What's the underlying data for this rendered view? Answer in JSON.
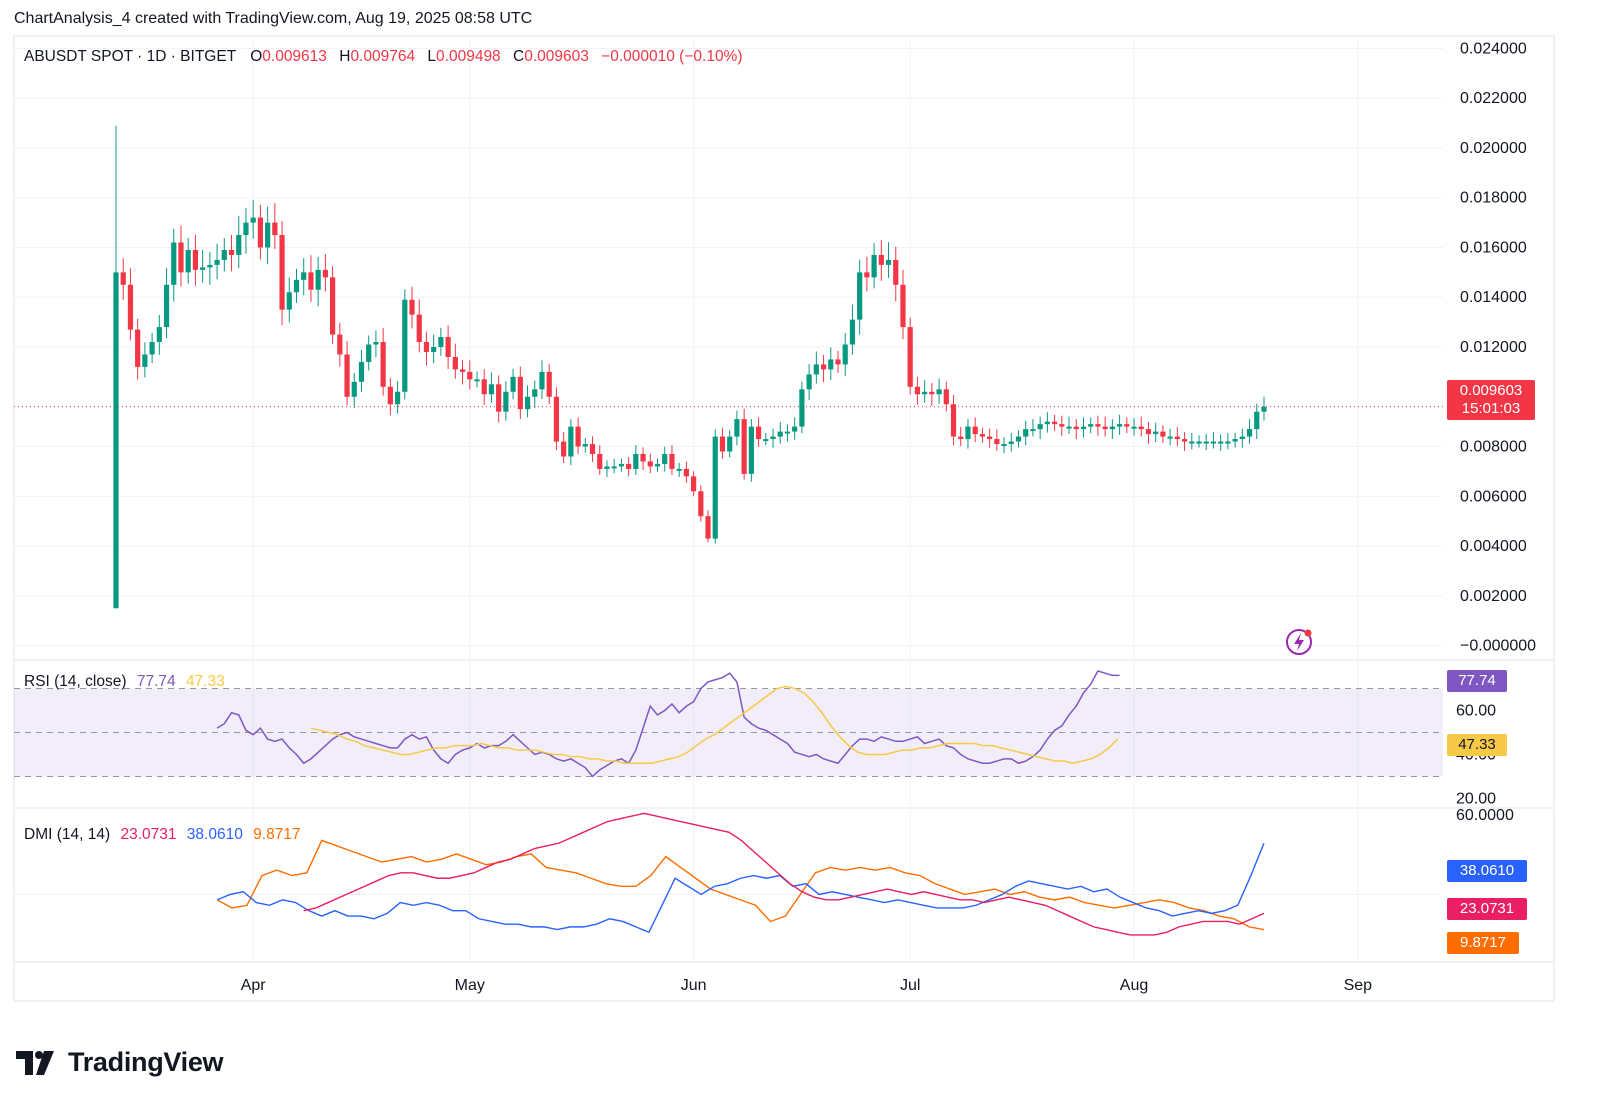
{
  "header": {
    "caption": "ChartAnalysis_4 created with TradingView.com, Aug 19, 2025 08:58 UTC"
  },
  "legend": {
    "symbol": "ABUSDT SPOT · 1D · BITGET",
    "open_label": "O",
    "open": "0.009613",
    "high_label": "H",
    "high": "0.009764",
    "low_label": "L",
    "low": "0.009498",
    "close_label": "C",
    "close": "0.009603",
    "change": "−0.000010 (−0.10%)"
  },
  "price_tag": {
    "price": "0.009603",
    "countdown": "15:01:03",
    "color": "#f23645"
  },
  "rsi_legend": {
    "name": "RSI (14, close)",
    "rsi": "77.74",
    "ma": "47.33"
  },
  "dmi_legend": {
    "name": "DMI (14, 14)",
    "adx": "23.0731",
    "plus_di": "38.0610",
    "minus_di": "9.8717"
  },
  "brand": {
    "name": "TradingView"
  },
  "colors": {
    "up": "#089981",
    "down": "#f23645",
    "rsi": "#7e57c2",
    "rsi_ma": "#f7c948",
    "adx": "#f23645",
    "plus_di": "#2962ff",
    "minus_di": "#ff6d00"
  },
  "chart_data": [
    {
      "type": "candlestick",
      "title": "ABUSDT SPOT · 1D · BITGET",
      "x_tick_labels": [
        "Apr",
        "May",
        "Jun",
        "Jul",
        "Aug",
        "Sep"
      ],
      "y_tick_labels": [
        "0.024000",
        "0.022000",
        "0.020000",
        "0.018000",
        "0.016000",
        "0.014000",
        "0.012000",
        "0.008000",
        "0.006000",
        "0.004000",
        "0.002000",
        "−0.000000"
      ],
      "ylim": [
        -0.0005,
        0.0245
      ],
      "first_date": "2025-03-13",
      "x_ticks_dates": [
        "2025-04-01",
        "2025-05-01",
        "2025-06-01",
        "2025-07-01",
        "2025-08-01",
        "2025-09-01"
      ],
      "last_close": 0.009603,
      "closes": [
        0.015,
        0.0145,
        0.0127,
        0.0112,
        0.0117,
        0.0122,
        0.0128,
        0.0145,
        0.0162,
        0.015,
        0.0159,
        0.0151,
        0.0152,
        0.0153,
        0.0155,
        0.0159,
        0.0157,
        0.0165,
        0.017,
        0.0172,
        0.016,
        0.017,
        0.0165,
        0.0135,
        0.0142,
        0.0147,
        0.015,
        0.0143,
        0.0151,
        0.0148,
        0.0125,
        0.0117,
        0.01,
        0.0106,
        0.0114,
        0.0121,
        0.0122,
        0.0104,
        0.0097,
        0.0102,
        0.0139,
        0.0133,
        0.0122,
        0.0118,
        0.012,
        0.0124,
        0.0116,
        0.0111,
        0.011,
        0.0107,
        0.0107,
        0.0101,
        0.0105,
        0.0094,
        0.0102,
        0.0108,
        0.0095,
        0.01,
        0.0103,
        0.011,
        0.01,
        0.0082,
        0.0076,
        0.0088,
        0.008,
        0.0081,
        0.0077,
        0.0071,
        0.0072,
        0.0072,
        0.0073,
        0.0071,
        0.0077,
        0.0074,
        0.0072,
        0.0073,
        0.0077,
        0.0071,
        0.0071,
        0.0068,
        0.0062,
        0.0052,
        0.0043,
        0.0084,
        0.0078,
        0.0084,
        0.0091,
        0.0069,
        0.0088,
        0.0083,
        0.0083,
        0.0084,
        0.0086,
        0.0086,
        0.0088,
        0.0103,
        0.0109,
        0.0113,
        0.0111,
        0.0115,
        0.0113,
        0.0121,
        0.0131,
        0.015,
        0.0148,
        0.0157,
        0.0153,
        0.0155,
        0.0145,
        0.0128,
        0.0104,
        0.0101,
        0.0102,
        0.0101,
        0.0103,
        0.0097,
        0.0084,
        0.0083,
        0.0088,
        0.0085,
        0.0084,
        0.0083,
        0.0081,
        0.0081,
        0.0082,
        0.0084,
        0.0087,
        0.0087,
        0.0089,
        0.009,
        0.0089,
        0.0088,
        0.0088,
        0.0087,
        0.0088,
        0.0089,
        0.0088,
        0.0087,
        0.0088,
        0.0089,
        0.0088,
        0.0088,
        0.0087,
        0.0085,
        0.0086,
        0.0084,
        0.0084,
        0.0083,
        0.0082,
        0.0082,
        0.0082,
        0.0082,
        0.0082,
        0.0082,
        0.0082,
        0.0083,
        0.0084,
        0.0087,
        0.0094,
        0.0096
      ]
    },
    {
      "type": "line",
      "title": "RSI (14, close)",
      "y_tick_labels": [
        "60.00",
        "40.00",
        "20.00"
      ],
      "ylim": [
        17,
        83
      ],
      "bands": [
        30,
        50,
        70
      ],
      "series": [
        {
          "name": "RSI",
          "values": [
            52,
            54,
            59,
            58,
            51,
            49,
            52,
            47,
            46,
            47,
            43,
            40,
            36,
            38,
            41,
            44,
            47,
            49,
            50,
            48,
            47,
            46,
            45,
            44,
            43,
            43,
            47,
            49,
            47,
            48,
            42,
            38,
            36,
            40,
            42,
            43,
            45,
            43,
            44,
            44,
            46,
            49,
            46,
            43,
            40,
            41,
            40,
            38,
            37,
            38,
            36,
            34,
            30,
            33,
            35,
            37,
            38,
            36,
            42,
            52,
            62,
            58,
            60,
            63,
            59,
            62,
            64,
            70,
            73,
            74,
            75,
            77,
            73,
            57,
            54,
            52,
            51,
            49,
            47,
            45,
            41,
            40,
            39,
            40,
            38,
            37,
            36,
            40,
            44,
            47,
            47,
            46,
            48,
            47,
            46,
            46,
            47,
            48,
            45,
            46,
            47,
            44,
            43,
            40,
            38,
            37,
            36,
            36,
            37,
            38,
            38,
            36,
            37,
            39,
            42,
            47,
            51,
            53,
            58,
            62,
            68,
            72,
            78,
            77,
            76,
            76
          ]
        },
        {
          "name": "MA",
          "values": [
            52,
            51,
            50,
            49,
            47,
            46,
            44,
            43,
            42,
            41,
            40,
            40,
            41,
            42,
            43,
            43,
            44,
            44,
            44,
            45,
            44,
            43,
            43,
            42,
            42,
            42,
            41,
            40,
            40,
            39,
            39,
            38,
            38,
            37,
            37,
            36,
            36,
            36,
            36,
            37,
            38,
            39,
            41,
            44,
            47,
            49,
            52,
            55,
            58,
            61,
            64,
            67,
            70,
            71,
            70,
            68,
            64,
            59,
            53,
            48,
            44,
            41,
            40,
            40,
            40,
            41,
            42,
            42,
            43,
            43,
            44,
            45,
            45,
            45,
            45,
            44,
            44,
            43,
            42,
            41,
            40,
            39,
            38,
            37,
            37,
            36,
            37,
            38,
            40,
            43,
            47
          ]
        }
      ]
    },
    {
      "type": "line",
      "title": "DMI (14, 14)",
      "y_tick_labels": [
        "60.0000"
      ],
      "series": [
        {
          "name": "ADX",
          "values": [
            24,
            25,
            27,
            29,
            31,
            33,
            35,
            37,
            38,
            38,
            37,
            36,
            36,
            37,
            38,
            40,
            42,
            43,
            45,
            47,
            48,
            49,
            51,
            53,
            55,
            57,
            58,
            59,
            60,
            59,
            58,
            57,
            56,
            55,
            54,
            53,
            50,
            46,
            42,
            38,
            34,
            31,
            29,
            28,
            28,
            29,
            30,
            31,
            32,
            31,
            30,
            31,
            30,
            29,
            28,
            28,
            27,
            28,
            29,
            28,
            27,
            26,
            24,
            22,
            20,
            18,
            17,
            16,
            15,
            15,
            15,
            16,
            18,
            19,
            20,
            20,
            20,
            19,
            21,
            23
          ]
        },
        {
          "name": "+DI",
          "values": [
            28,
            30,
            31,
            27,
            26,
            28,
            27,
            24,
            22,
            24,
            22,
            22,
            21,
            23,
            27,
            26,
            27,
            26,
            24,
            24,
            21,
            20,
            19,
            19,
            18,
            18,
            17,
            18,
            18,
            19,
            21,
            20,
            18,
            16,
            26,
            36,
            33,
            30,
            33,
            34,
            36,
            37,
            36,
            37,
            33,
            34,
            30,
            31,
            30,
            29,
            28,
            27,
            28,
            27,
            26,
            25,
            25,
            25,
            26,
            28,
            30,
            33,
            35,
            34,
            33,
            32,
            33,
            31,
            32,
            29,
            27,
            25,
            24,
            22,
            23,
            24,
            23,
            24,
            26,
            37,
            49
          ]
        },
        {
          "name": "-DI",
          "values": [
            28,
            25,
            26,
            37,
            39,
            37,
            38,
            50,
            48,
            46,
            44,
            42,
            43,
            44,
            42,
            43,
            45,
            43,
            41,
            42,
            44,
            45,
            40,
            39,
            38,
            36,
            34,
            33,
            33,
            37,
            44,
            40,
            36,
            32,
            30,
            28,
            26,
            20,
            22,
            30,
            38,
            40,
            39,
            40,
            39,
            40,
            38,
            37,
            34,
            32,
            30,
            31,
            32,
            30,
            31,
            29,
            28,
            29,
            27,
            26,
            25,
            26,
            27,
            28,
            27,
            25,
            24,
            22,
            21,
            18,
            17
          ]
        }
      ]
    }
  ]
}
